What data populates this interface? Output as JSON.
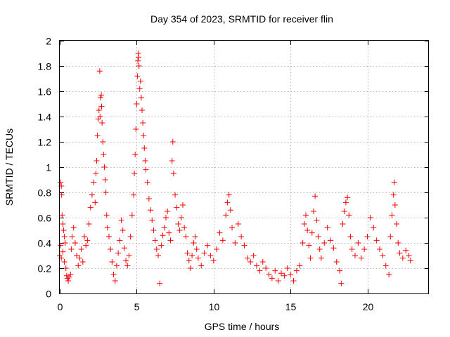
{
  "chart_data": {
    "type": "scatter",
    "title": "Day 354 of 2023, SRMTID for receiver flin",
    "xlabel": "GPS time / hours",
    "ylabel": "SRMTID / TECUs",
    "xlim": [
      0,
      24
    ],
    "ylim": [
      0,
      2
    ],
    "xticks": [
      0,
      5,
      10,
      15,
      20
    ],
    "xtick_labels": [
      "0",
      "5",
      "10",
      "15",
      "20"
    ],
    "yticks": [
      0,
      0.2,
      0.4,
      0.6,
      0.8,
      1,
      1.2,
      1.4,
      1.6,
      1.8,
      2
    ],
    "ytick_labels": [
      "0",
      "0.2",
      "0.4",
      "0.6",
      "0.8",
      "1",
      "1.2",
      "1.4",
      "1.6",
      "1.8",
      "2"
    ],
    "grid": true,
    "marker": "+",
    "color": "#ff0000",
    "series": [
      {
        "name": "SRMTID",
        "points": [
          [
            0.0,
            0.3
          ],
          [
            0.05,
            0.88
          ],
          [
            0.1,
            0.85
          ],
          [
            0.12,
            0.78
          ],
          [
            0.15,
            0.62
          ],
          [
            0.2,
            0.55
          ],
          [
            0.25,
            0.5
          ],
          [
            0.3,
            0.45
          ],
          [
            0.05,
            0.38
          ],
          [
            0.1,
            0.28
          ],
          [
            0.2,
            0.33
          ],
          [
            0.3,
            0.25
          ],
          [
            0.35,
            0.4
          ],
          [
            0.4,
            0.2
          ],
          [
            0.45,
            0.14
          ],
          [
            0.5,
            0.12
          ],
          [
            0.55,
            0.1
          ],
          [
            0.6,
            0.13
          ],
          [
            0.7,
            0.15
          ],
          [
            0.75,
            0.35
          ],
          [
            0.8,
            0.45
          ],
          [
            0.9,
            0.52
          ],
          [
            1.0,
            0.4
          ],
          [
            1.1,
            0.3
          ],
          [
            1.2,
            0.22
          ],
          [
            1.3,
            0.28
          ],
          [
            1.4,
            0.35
          ],
          [
            1.5,
            0.25
          ],
          [
            1.6,
            0.45
          ],
          [
            1.7,
            0.38
          ],
          [
            1.8,
            0.42
          ],
          [
            1.9,
            0.55
          ],
          [
            2.0,
            0.68
          ],
          [
            2.1,
            0.78
          ],
          [
            2.2,
            0.88
          ],
          [
            2.3,
            0.72
          ],
          [
            2.35,
            0.95
          ],
          [
            2.4,
            1.05
          ],
          [
            2.45,
            1.25
          ],
          [
            2.5,
            1.38
          ],
          [
            2.55,
            1.45
          ],
          [
            2.6,
            1.76
          ],
          [
            2.62,
            1.4
          ],
          [
            2.65,
            1.55
          ],
          [
            2.7,
            1.57
          ],
          [
            2.72,
            1.48
          ],
          [
            2.75,
            1.35
          ],
          [
            2.8,
            1.2
          ],
          [
            2.85,
            1.1
          ],
          [
            2.9,
            1.0
          ],
          [
            2.95,
            0.9
          ],
          [
            3.0,
            0.8
          ],
          [
            3.05,
            0.62
          ],
          [
            3.1,
            0.52
          ],
          [
            3.2,
            0.45
          ],
          [
            3.3,
            0.35
          ],
          [
            3.4,
            0.25
          ],
          [
            3.5,
            0.15
          ],
          [
            3.6,
            0.1
          ],
          [
            3.7,
            0.22
          ],
          [
            3.8,
            0.32
          ],
          [
            3.9,
            0.42
          ],
          [
            4.0,
            0.58
          ],
          [
            4.1,
            0.5
          ],
          [
            4.2,
            0.36
          ],
          [
            4.3,
            0.26
          ],
          [
            4.4,
            0.22
          ],
          [
            4.5,
            0.3
          ],
          [
            4.6,
            0.45
          ],
          [
            4.7,
            0.62
          ],
          [
            4.8,
            0.78
          ],
          [
            4.85,
            0.95
          ],
          [
            4.9,
            1.1
          ],
          [
            4.95,
            1.3
          ],
          [
            5.0,
            1.5
          ],
          [
            5.05,
            1.72
          ],
          [
            5.08,
            1.84
          ],
          [
            5.1,
            1.9
          ],
          [
            5.12,
            1.87
          ],
          [
            5.15,
            1.8
          ],
          [
            5.2,
            1.62
          ],
          [
            5.25,
            1.68
          ],
          [
            5.3,
            1.55
          ],
          [
            5.35,
            1.45
          ],
          [
            5.4,
            1.35
          ],
          [
            5.45,
            1.25
          ],
          [
            5.5,
            1.15
          ],
          [
            5.55,
            1.05
          ],
          [
            5.6,
            0.98
          ],
          [
            5.7,
            0.88
          ],
          [
            5.8,
            0.75
          ],
          [
            5.9,
            0.66
          ],
          [
            6.0,
            0.58
          ],
          [
            6.1,
            0.5
          ],
          [
            6.2,
            0.42
          ],
          [
            6.3,
            0.35
          ],
          [
            6.4,
            0.3
          ],
          [
            6.5,
            0.08
          ],
          [
            6.6,
            0.38
          ],
          [
            6.7,
            0.46
          ],
          [
            6.8,
            0.52
          ],
          [
            6.9,
            0.6
          ],
          [
            7.0,
            0.65
          ],
          [
            7.1,
            0.48
          ],
          [
            7.2,
            0.42
          ],
          [
            7.3,
            1.05
          ],
          [
            7.35,
            1.2
          ],
          [
            7.4,
            0.95
          ],
          [
            7.5,
            0.78
          ],
          [
            7.6,
            0.68
          ],
          [
            7.7,
            0.55
          ],
          [
            7.8,
            0.5
          ],
          [
            7.9,
            0.6
          ],
          [
            8.0,
            0.7
          ],
          [
            8.1,
            0.52
          ],
          [
            8.2,
            0.45
          ],
          [
            8.3,
            0.32
          ],
          [
            8.4,
            0.26
          ],
          [
            8.5,
            0.2
          ],
          [
            8.6,
            0.3
          ],
          [
            8.7,
            0.4
          ],
          [
            8.8,
            0.45
          ],
          [
            8.9,
            0.35
          ],
          [
            9.0,
            0.28
          ],
          [
            9.2,
            0.22
          ],
          [
            9.4,
            0.32
          ],
          [
            9.6,
            0.38
          ],
          [
            9.8,
            0.3
          ],
          [
            10.0,
            0.26
          ],
          [
            10.2,
            0.35
          ],
          [
            10.4,
            0.48
          ],
          [
            10.6,
            0.42
          ],
          [
            10.8,
            0.62
          ],
          [
            10.9,
            0.72
          ],
          [
            11.0,
            0.78
          ],
          [
            11.1,
            0.66
          ],
          [
            11.2,
            0.52
          ],
          [
            11.4,
            0.4
          ],
          [
            11.6,
            0.55
          ],
          [
            11.8,
            0.45
          ],
          [
            12.0,
            0.38
          ],
          [
            12.2,
            0.28
          ],
          [
            12.4,
            0.25
          ],
          [
            12.6,
            0.3
          ],
          [
            12.8,
            0.22
          ],
          [
            13.0,
            0.18
          ],
          [
            13.2,
            0.25
          ],
          [
            13.4,
            0.2
          ],
          [
            13.6,
            0.15
          ],
          [
            13.8,
            0.12
          ],
          [
            14.0,
            0.18
          ],
          [
            14.2,
            0.1
          ],
          [
            14.4,
            0.16
          ],
          [
            14.6,
            0.14
          ],
          [
            14.8,
            0.2
          ],
          [
            15.0,
            0.15
          ],
          [
            15.2,
            0.1
          ],
          [
            15.4,
            0.18
          ],
          [
            15.6,
            0.22
          ],
          [
            15.8,
            0.4
          ],
          [
            15.9,
            0.55
          ],
          [
            16.0,
            0.62
          ],
          [
            16.1,
            0.5
          ],
          [
            16.2,
            0.38
          ],
          [
            16.3,
            0.28
          ],
          [
            16.4,
            0.48
          ],
          [
            16.5,
            0.65
          ],
          [
            16.6,
            0.77
          ],
          [
            16.7,
            0.58
          ],
          [
            16.8,
            0.45
          ],
          [
            16.9,
            0.35
          ],
          [
            17.0,
            0.28
          ],
          [
            17.2,
            0.4
          ],
          [
            17.4,
            0.52
          ],
          [
            17.6,
            0.42
          ],
          [
            17.8,
            0.36
          ],
          [
            18.0,
            0.25
          ],
          [
            18.2,
            0.18
          ],
          [
            18.3,
            0.08
          ],
          [
            18.4,
            0.55
          ],
          [
            18.5,
            0.65
          ],
          [
            18.6,
            0.72
          ],
          [
            18.7,
            0.76
          ],
          [
            18.8,
            0.62
          ],
          [
            18.9,
            0.45
          ],
          [
            19.0,
            0.35
          ],
          [
            19.2,
            0.3
          ],
          [
            19.4,
            0.4
          ],
          [
            19.6,
            0.28
          ],
          [
            19.8,
            0.35
          ],
          [
            20.0,
            0.45
          ],
          [
            20.2,
            0.6
          ],
          [
            20.4,
            0.52
          ],
          [
            20.6,
            0.42
          ],
          [
            20.8,
            0.35
          ],
          [
            21.0,
            0.3
          ],
          [
            21.2,
            0.22
          ],
          [
            21.4,
            0.15
          ],
          [
            21.5,
            0.45
          ],
          [
            21.6,
            0.62
          ],
          [
            21.7,
            0.78
          ],
          [
            21.75,
            0.88
          ],
          [
            21.8,
            0.7
          ],
          [
            21.9,
            0.55
          ],
          [
            22.0,
            0.4
          ],
          [
            22.1,
            0.32
          ],
          [
            22.3,
            0.28
          ],
          [
            22.5,
            0.34
          ],
          [
            22.7,
            0.3
          ],
          [
            22.8,
            0.26
          ]
        ]
      }
    ]
  }
}
